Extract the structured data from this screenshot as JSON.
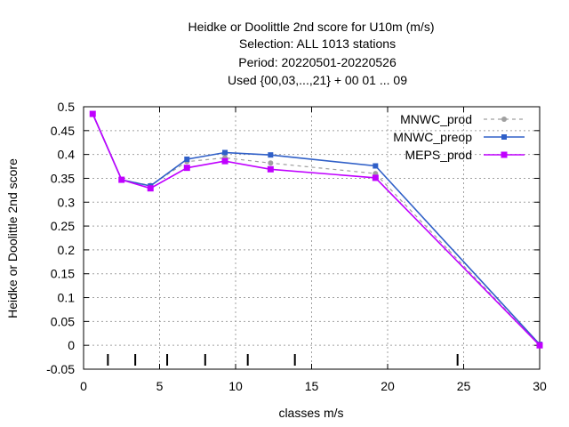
{
  "chart_data": {
    "type": "line",
    "title_lines": [
      "Heidke or Doolittle 2nd score  for U10m (m/s)",
      "Selection: ALL    1013 stations",
      "Period: 20220501-20220526",
      "Used {00,03,...,21} + 00 01 ... 09"
    ],
    "xlabel": "classes m/s",
    "ylabel": "Heidke or Doolittle 2nd score",
    "xlim": [
      0,
      30
    ],
    "ylim": [
      -0.05,
      0.5
    ],
    "xticks": [
      0,
      5,
      10,
      15,
      20,
      25,
      30
    ],
    "yticks": [
      -0.05,
      0,
      0.05,
      0.1,
      0.15,
      0.2,
      0.25,
      0.3,
      0.35,
      0.4,
      0.45,
      0.5
    ],
    "grid": true,
    "legend_position": "top-right",
    "series": [
      {
        "name": "MNWC_prod",
        "color": "#a0a0a0",
        "style": "dashed",
        "marker": "circle",
        "x": [
          0.6,
          2.5,
          4.4,
          6.8,
          9.3,
          12.3,
          19.2,
          30
        ],
        "y": [
          0.485,
          0.347,
          0.335,
          0.385,
          0.393,
          0.382,
          0.36,
          0.0
        ]
      },
      {
        "name": "MNWC_preop",
        "color": "#3060c8",
        "style": "solid",
        "marker": "square",
        "x": [
          0.6,
          2.5,
          4.4,
          6.8,
          9.3,
          12.3,
          19.2,
          30
        ],
        "y": [
          0.485,
          0.347,
          0.334,
          0.39,
          0.404,
          0.399,
          0.376,
          0.002
        ]
      },
      {
        "name": "MEPS_prod",
        "color": "#c000ff",
        "style": "solid",
        "marker": "filled-square",
        "x": [
          0.6,
          2.5,
          4.4,
          6.8,
          9.3,
          12.3,
          19.2,
          30
        ],
        "y": [
          0.485,
          0.347,
          0.329,
          0.372,
          0.386,
          0.369,
          0.351,
          0.0
        ]
      }
    ],
    "class_marks": [
      1.6,
      3.4,
      5.5,
      8.0,
      10.8,
      13.9,
      24.6
    ]
  }
}
